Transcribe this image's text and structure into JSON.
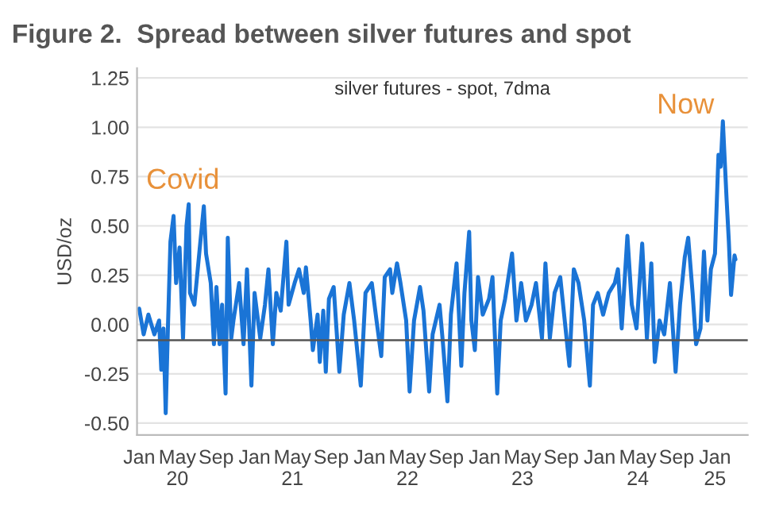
{
  "chart_data": {
    "type": "line",
    "title": "Figure 2.  Spread between silver futures and spot",
    "subtitle": "silver futures - spot, 7dma",
    "ylabel": "USD/oz",
    "annotations": [
      "Covid",
      "Now"
    ],
    "series": [
      {
        "color": "#1a74d6",
        "x": [
          "2020-01-01",
          "2020-01-15",
          "2020-01-30",
          "2020-02-18",
          "2020-03-04",
          "2020-03-11",
          "2020-03-18",
          "2020-03-25",
          "2020-04-01",
          "2020-04-09",
          "2020-04-19",
          "2020-04-27",
          "2020-05-08",
          "2020-05-19",
          "2020-05-30",
          "2020-06-06",
          "2020-06-10",
          "2020-06-24",
          "2020-07-13",
          "2020-07-24",
          "2020-07-31",
          "2020-08-15",
          "2020-08-25",
          "2020-09-02",
          "2020-09-12",
          "2020-09-20",
          "2020-10-01",
          "2020-10-08",
          "2020-10-19",
          "2020-10-26",
          "2020-11-13",
          "2020-11-27",
          "2020-12-08",
          "2020-12-22",
          "2021-01-01",
          "2021-01-19",
          "2021-02-03",
          "2021-02-14",
          "2021-02-28",
          "2021-03-11",
          "2021-03-25",
          "2021-04-12",
          "2021-04-19",
          "2021-05-08",
          "2021-05-22",
          "2021-06-06",
          "2021-06-13",
          "2021-06-28",
          "2021-07-05",
          "2021-07-20",
          "2021-07-27",
          "2021-08-07",
          "2021-08-15",
          "2021-08-25",
          "2021-09-09",
          "2021-09-27",
          "2021-10-11",
          "2021-10-29",
          "2021-11-13",
          "2021-12-04",
          "2021-12-19",
          "2022-01-08",
          "2022-01-23",
          "2022-02-07",
          "2022-02-18",
          "2022-03-07",
          "2022-03-14",
          "2022-03-29",
          "2022-04-09",
          "2022-04-27",
          "2022-05-08",
          "2022-05-22",
          "2022-06-10",
          "2022-06-21",
          "2022-07-09",
          "2022-07-20",
          "2022-08-11",
          "2022-08-22",
          "2022-09-05",
          "2022-09-16",
          "2022-10-04",
          "2022-10-19",
          "2022-10-29",
          "2022-11-13",
          "2022-11-20",
          "2022-12-01",
          "2022-12-11",
          "2022-12-26",
          "2023-01-15",
          "2023-01-26",
          "2023-02-10",
          "2023-02-21",
          "2023-03-07",
          "2023-03-29",
          "2023-04-12",
          "2023-04-27",
          "2023-05-12",
          "2023-05-30",
          "2023-06-13",
          "2023-07-02",
          "2023-07-13",
          "2023-07-27",
          "2023-08-11",
          "2023-08-29",
          "2023-09-09",
          "2023-09-27",
          "2023-10-11",
          "2023-10-26",
          "2023-11-13",
          "2023-12-01",
          "2023-12-11",
          "2023-12-26",
          "2024-01-12",
          "2024-01-30",
          "2024-02-18",
          "2024-02-28",
          "2024-03-11",
          "2024-03-29",
          "2024-04-12",
          "2024-04-27",
          "2024-05-15",
          "2024-05-30",
          "2024-06-13",
          "2024-06-24",
          "2024-07-09",
          "2024-07-24",
          "2024-08-11",
          "2024-08-29",
          "2024-09-12",
          "2024-09-27",
          "2024-10-08",
          "2024-10-22",
          "2024-11-02",
          "2024-11-16",
          "2024-11-27",
          "2024-12-08",
          "2024-12-19",
          "2025-01-01",
          "2025-01-12",
          "2025-01-19",
          "2025-01-26",
          "2025-02-07",
          "2025-02-14",
          "2025-02-21",
          "2025-03-04",
          "2025-03-07"
        ],
        "values": [
          0.08,
          -0.05,
          0.05,
          -0.05,
          0.02,
          -0.23,
          -0.02,
          -0.45,
          -0.02,
          0.42,
          0.55,
          0.21,
          0.39,
          -0.07,
          0.5,
          0.61,
          0.16,
          0.1,
          0.42,
          0.6,
          0.36,
          0.21,
          -0.1,
          0.19,
          -0.1,
          0.1,
          -0.35,
          0.44,
          -0.07,
          0.02,
          0.21,
          -0.1,
          0.28,
          -0.31,
          0.16,
          -0.07,
          0.1,
          0.28,
          -0.1,
          0.16,
          0.07,
          0.42,
          0.1,
          0.21,
          0.28,
          0.16,
          0.29,
          0.02,
          -0.13,
          0.05,
          -0.19,
          0.07,
          -0.24,
          0.13,
          0.19,
          -0.24,
          0.05,
          0.21,
          0.02,
          -0.31,
          0.16,
          0.21,
          0.02,
          -0.16,
          0.24,
          0.28,
          0.16,
          0.31,
          0.21,
          0.02,
          -0.34,
          0.02,
          0.19,
          0.07,
          -0.34,
          -0.05,
          0.1,
          -0.1,
          -0.39,
          0.05,
          0.31,
          -0.21,
          0.16,
          0.47,
          0.02,
          -0.13,
          0.24,
          0.05,
          0.13,
          0.24,
          -0.35,
          0.02,
          0.13,
          0.36,
          0.02,
          0.21,
          0.02,
          0.1,
          0.21,
          -0.07,
          0.31,
          -0.07,
          0.16,
          0.24,
          0.07,
          -0.21,
          0.28,
          0.21,
          0.02,
          -0.31,
          0.1,
          0.16,
          0.05,
          0.16,
          0.21,
          0.28,
          -0.02,
          0.45,
          0.1,
          -0.02,
          0.41,
          -0.07,
          0.31,
          -0.19,
          0.02,
          -0.05,
          0.21,
          -0.24,
          0.1,
          0.34,
          0.44,
          0.16,
          -0.1,
          -0.02,
          0.37,
          0.02,
          0.28,
          0.36,
          0.86,
          0.8,
          1.03,
          0.63,
          0.42,
          0.15,
          0.35,
          0.33
        ]
      }
    ],
    "ref_lines": [
      {
        "axis": "y",
        "value": -0.08,
        "color": "#555555"
      }
    ],
    "xlim": [
      "2019-12-25",
      "2025-04-15"
    ],
    "ylim": [
      -0.56,
      1.3
    ],
    "xticks": [
      {
        "value": "2020-01-01",
        "label": "Jan"
      },
      {
        "value": "2020-05-01",
        "label": "May\n20"
      },
      {
        "value": "2020-09-01",
        "label": "Sep"
      },
      {
        "value": "2021-01-01",
        "label": "Jan"
      },
      {
        "value": "2021-05-01",
        "label": "May\n21"
      },
      {
        "value": "2021-09-01",
        "label": "Sep"
      },
      {
        "value": "2022-01-01",
        "label": "Jan"
      },
      {
        "value": "2022-05-01",
        "label": "May\n22"
      },
      {
        "value": "2022-09-01",
        "label": "Sep"
      },
      {
        "value": "2023-01-01",
        "label": "Jan"
      },
      {
        "value": "2023-05-01",
        "label": "May\n23"
      },
      {
        "value": "2023-09-01",
        "label": "Sep"
      },
      {
        "value": "2024-01-01",
        "label": "Jan"
      },
      {
        "value": "2024-05-01",
        "label": "May\n24"
      },
      {
        "value": "2024-09-01",
        "label": "Sep"
      },
      {
        "value": "2025-01-01",
        "label": "Jan\n25"
      }
    ],
    "yticks": [
      {
        "value": -0.5,
        "label": "-0.50"
      },
      {
        "value": -0.25,
        "label": "-0.25"
      },
      {
        "value": 0,
        "label": "0.00"
      },
      {
        "value": 0.25,
        "label": "0.25"
      },
      {
        "value": 0.5,
        "label": "0.50"
      },
      {
        "value": 0.75,
        "label": "0.75"
      },
      {
        "value": 1.0,
        "label": "1.00"
      },
      {
        "value": 1.25,
        "label": "1.25"
      }
    ],
    "grid": "y",
    "legend": false,
    "line_style": "solid",
    "marker": "none"
  }
}
